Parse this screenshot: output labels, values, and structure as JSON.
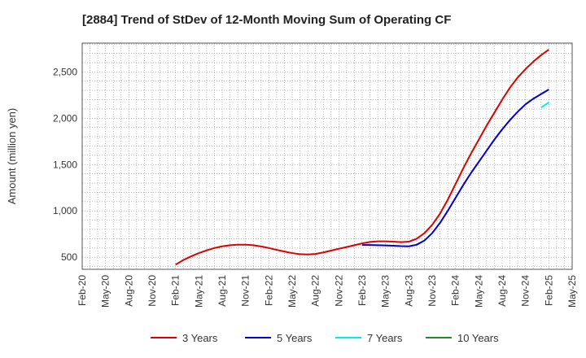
{
  "chart_data": {
    "type": "line",
    "title": "[2884]  Trend of StDev of 12-Month Moving Sum of Operating CF",
    "xlabel": "",
    "ylabel": "Amount (million yen)",
    "x_ticks": [
      "Feb-20",
      "May-20",
      "Aug-20",
      "Nov-20",
      "Feb-21",
      "May-21",
      "Aug-21",
      "Nov-21",
      "Feb-22",
      "May-22",
      "Aug-22",
      "Nov-22",
      "Feb-23",
      "May-23",
      "Aug-23",
      "Nov-23",
      "Feb-24",
      "May-24",
      "Aug-24",
      "Nov-24",
      "Feb-25",
      "May-25"
    ],
    "x_range": [
      "2020-02",
      "2025-05"
    ],
    "y_ticks": [
      500,
      1000,
      1500,
      2000,
      2500
    ],
    "ylim": [
      370,
      2810
    ],
    "grid": true,
    "legend_position": "bottom",
    "series": [
      {
        "name": "3 Years",
        "color": "#dd0000",
        "points": [
          [
            "2021-02",
            420
          ],
          [
            "2021-03",
            470
          ],
          [
            "2021-04",
            510
          ],
          [
            "2021-05",
            545
          ],
          [
            "2021-06",
            575
          ],
          [
            "2021-07",
            600
          ],
          [
            "2021-08",
            618
          ],
          [
            "2021-09",
            630
          ],
          [
            "2021-10",
            636
          ],
          [
            "2021-11",
            636
          ],
          [
            "2021-12",
            630
          ],
          [
            "2022-01",
            617
          ],
          [
            "2022-02",
            600
          ],
          [
            "2022-03",
            580
          ],
          [
            "2022-04",
            562
          ],
          [
            "2022-05",
            545
          ],
          [
            "2022-06",
            533
          ],
          [
            "2022-07",
            530
          ],
          [
            "2022-08",
            536
          ],
          [
            "2022-09",
            552
          ],
          [
            "2022-10",
            572
          ],
          [
            "2022-11",
            592
          ],
          [
            "2022-12",
            610
          ],
          [
            "2023-01",
            630
          ],
          [
            "2023-02",
            650
          ],
          [
            "2023-03",
            665
          ],
          [
            "2023-04",
            672
          ],
          [
            "2023-05",
            672
          ],
          [
            "2023-06",
            668
          ],
          [
            "2023-07",
            663
          ],
          [
            "2023-08",
            668
          ],
          [
            "2023-09",
            700
          ],
          [
            "2023-10",
            760
          ],
          [
            "2023-11",
            850
          ],
          [
            "2023-12",
            970
          ],
          [
            "2024-01",
            1120
          ],
          [
            "2024-02",
            1290
          ],
          [
            "2024-03",
            1460
          ],
          [
            "2024-04",
            1620
          ],
          [
            "2024-05",
            1770
          ],
          [
            "2024-06",
            1920
          ],
          [
            "2024-07",
            2060
          ],
          [
            "2024-08",
            2200
          ],
          [
            "2024-09",
            2330
          ],
          [
            "2024-10",
            2440
          ],
          [
            "2024-11",
            2530
          ],
          [
            "2024-12",
            2610
          ],
          [
            "2025-01",
            2680
          ],
          [
            "2025-02",
            2740
          ]
        ]
      },
      {
        "name": "5 Years",
        "color": "#0000cc",
        "points": [
          [
            "2023-02",
            632
          ],
          [
            "2023-03",
            632
          ],
          [
            "2023-04",
            630
          ],
          [
            "2023-05",
            628
          ],
          [
            "2023-06",
            624
          ],
          [
            "2023-07",
            620
          ],
          [
            "2023-08",
            618
          ],
          [
            "2023-09",
            635
          ],
          [
            "2023-10",
            680
          ],
          [
            "2023-11",
            760
          ],
          [
            "2023-12",
            870
          ],
          [
            "2024-01",
            1000
          ],
          [
            "2024-02",
            1140
          ],
          [
            "2024-03",
            1280
          ],
          [
            "2024-04",
            1410
          ],
          [
            "2024-05",
            1530
          ],
          [
            "2024-06",
            1650
          ],
          [
            "2024-07",
            1770
          ],
          [
            "2024-08",
            1880
          ],
          [
            "2024-09",
            1980
          ],
          [
            "2024-10",
            2070
          ],
          [
            "2024-11",
            2150
          ],
          [
            "2024-12",
            2210
          ],
          [
            "2025-01",
            2260
          ],
          [
            "2025-02",
            2310
          ]
        ]
      },
      {
        "name": "7 Years",
        "color": "#00eeee",
        "points": [
          [
            "2025-01",
            2115
          ],
          [
            "2025-02",
            2170
          ]
        ]
      },
      {
        "name": "10 Years",
        "color": "#228b22",
        "points": []
      }
    ]
  }
}
